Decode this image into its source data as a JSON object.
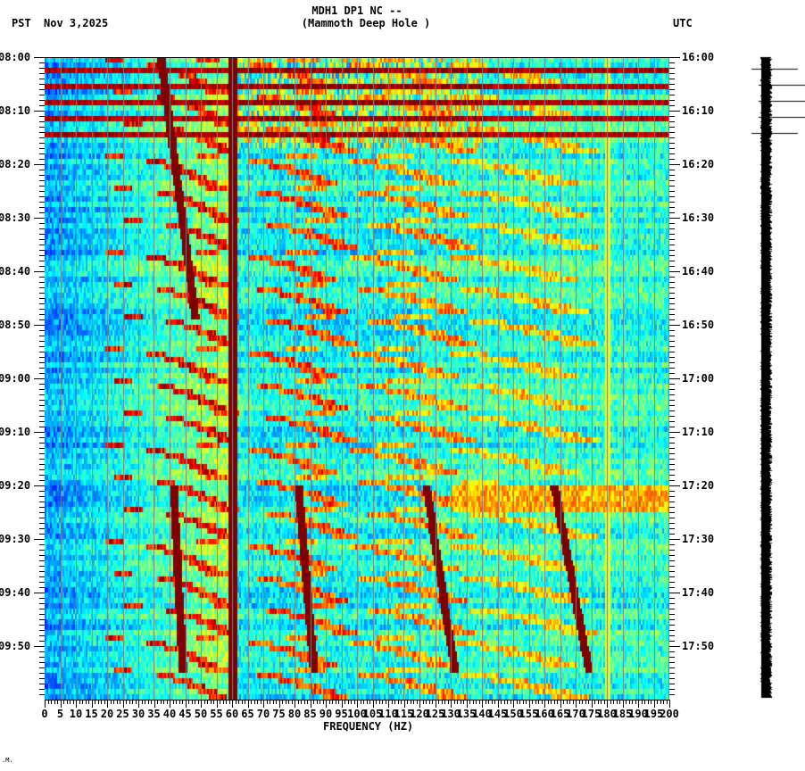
{
  "header": {
    "title_line1": "MDH1 DP1 NC --",
    "title_line2": "(Mammoth Deep Hole )",
    "tz_left": "PST",
    "date": "Nov 3,2025",
    "tz_right": "UTC"
  },
  "chart_data": {
    "type": "heatmap",
    "title": "MDH1 DP1 NC -- (Mammoth Deep Hole )",
    "subtitle": "Nov 3,2025",
    "xlabel": "FREQUENCY (HZ)",
    "ylabel_left": "PST",
    "ylabel_right": "UTC",
    "xlim": [
      0,
      200
    ],
    "x_ticks": [
      0,
      5,
      10,
      15,
      20,
      25,
      30,
      35,
      40,
      45,
      50,
      55,
      60,
      65,
      70,
      75,
      80,
      85,
      90,
      95,
      100,
      105,
      110,
      115,
      120,
      125,
      130,
      135,
      140,
      145,
      150,
      155,
      160,
      165,
      170,
      175,
      180,
      185,
      190,
      195,
      200
    ],
    "x_minor_tick_step": 1,
    "y_ticks_left": [
      "08:00",
      "08:10",
      "08:20",
      "08:30",
      "08:40",
      "08:50",
      "09:00",
      "09:10",
      "09:20",
      "09:30",
      "09:40",
      "09:50"
    ],
    "y_ticks_right": [
      "16:00",
      "16:10",
      "16:20",
      "16:30",
      "16:40",
      "16:50",
      "17:00",
      "17:10",
      "17:20",
      "17:30",
      "17:40",
      "17:50"
    ],
    "y_minor_tick_step_minutes": 1,
    "duration_minutes": 120,
    "colormap": "jet",
    "grid": {
      "vertical_every_hz": 5,
      "color": "#808080"
    },
    "features": {
      "constant_line_hz": [
        60
      ],
      "weak_line_hz": [
        180
      ],
      "broadband_bursts_minutes": [
        2,
        5,
        8,
        11,
        14
      ],
      "elevated_band": {
        "start_min": 80,
        "end_min": 85,
        "from_hz": 130,
        "to_hz": 200
      },
      "drifting_tones": [
        {
          "start_min": 0,
          "end_min": 48,
          "start_hz": 37,
          "end_hz": 48
        },
        {
          "start_min": 80,
          "end_min": 114,
          "start_hz": 41,
          "end_hz": 44
        },
        {
          "start_min": 80,
          "end_min": 114,
          "start_hz": 81,
          "end_hz": 86
        },
        {
          "start_min": 80,
          "end_min": 114,
          "start_hz": 122,
          "end_hz": 131
        },
        {
          "start_min": 80,
          "end_min": 114,
          "start_hz": 163,
          "end_hz": 174
        }
      ],
      "arcs": {
        "period_minutes": 6,
        "base_hz_start": 22,
        "sweep_hz": 55
      }
    }
  },
  "seismogram": {
    "marker_lines_y": [
      77,
      95,
      113,
      131,
      149
    ]
  },
  "footer": {
    "corner_mark": ".M."
  }
}
